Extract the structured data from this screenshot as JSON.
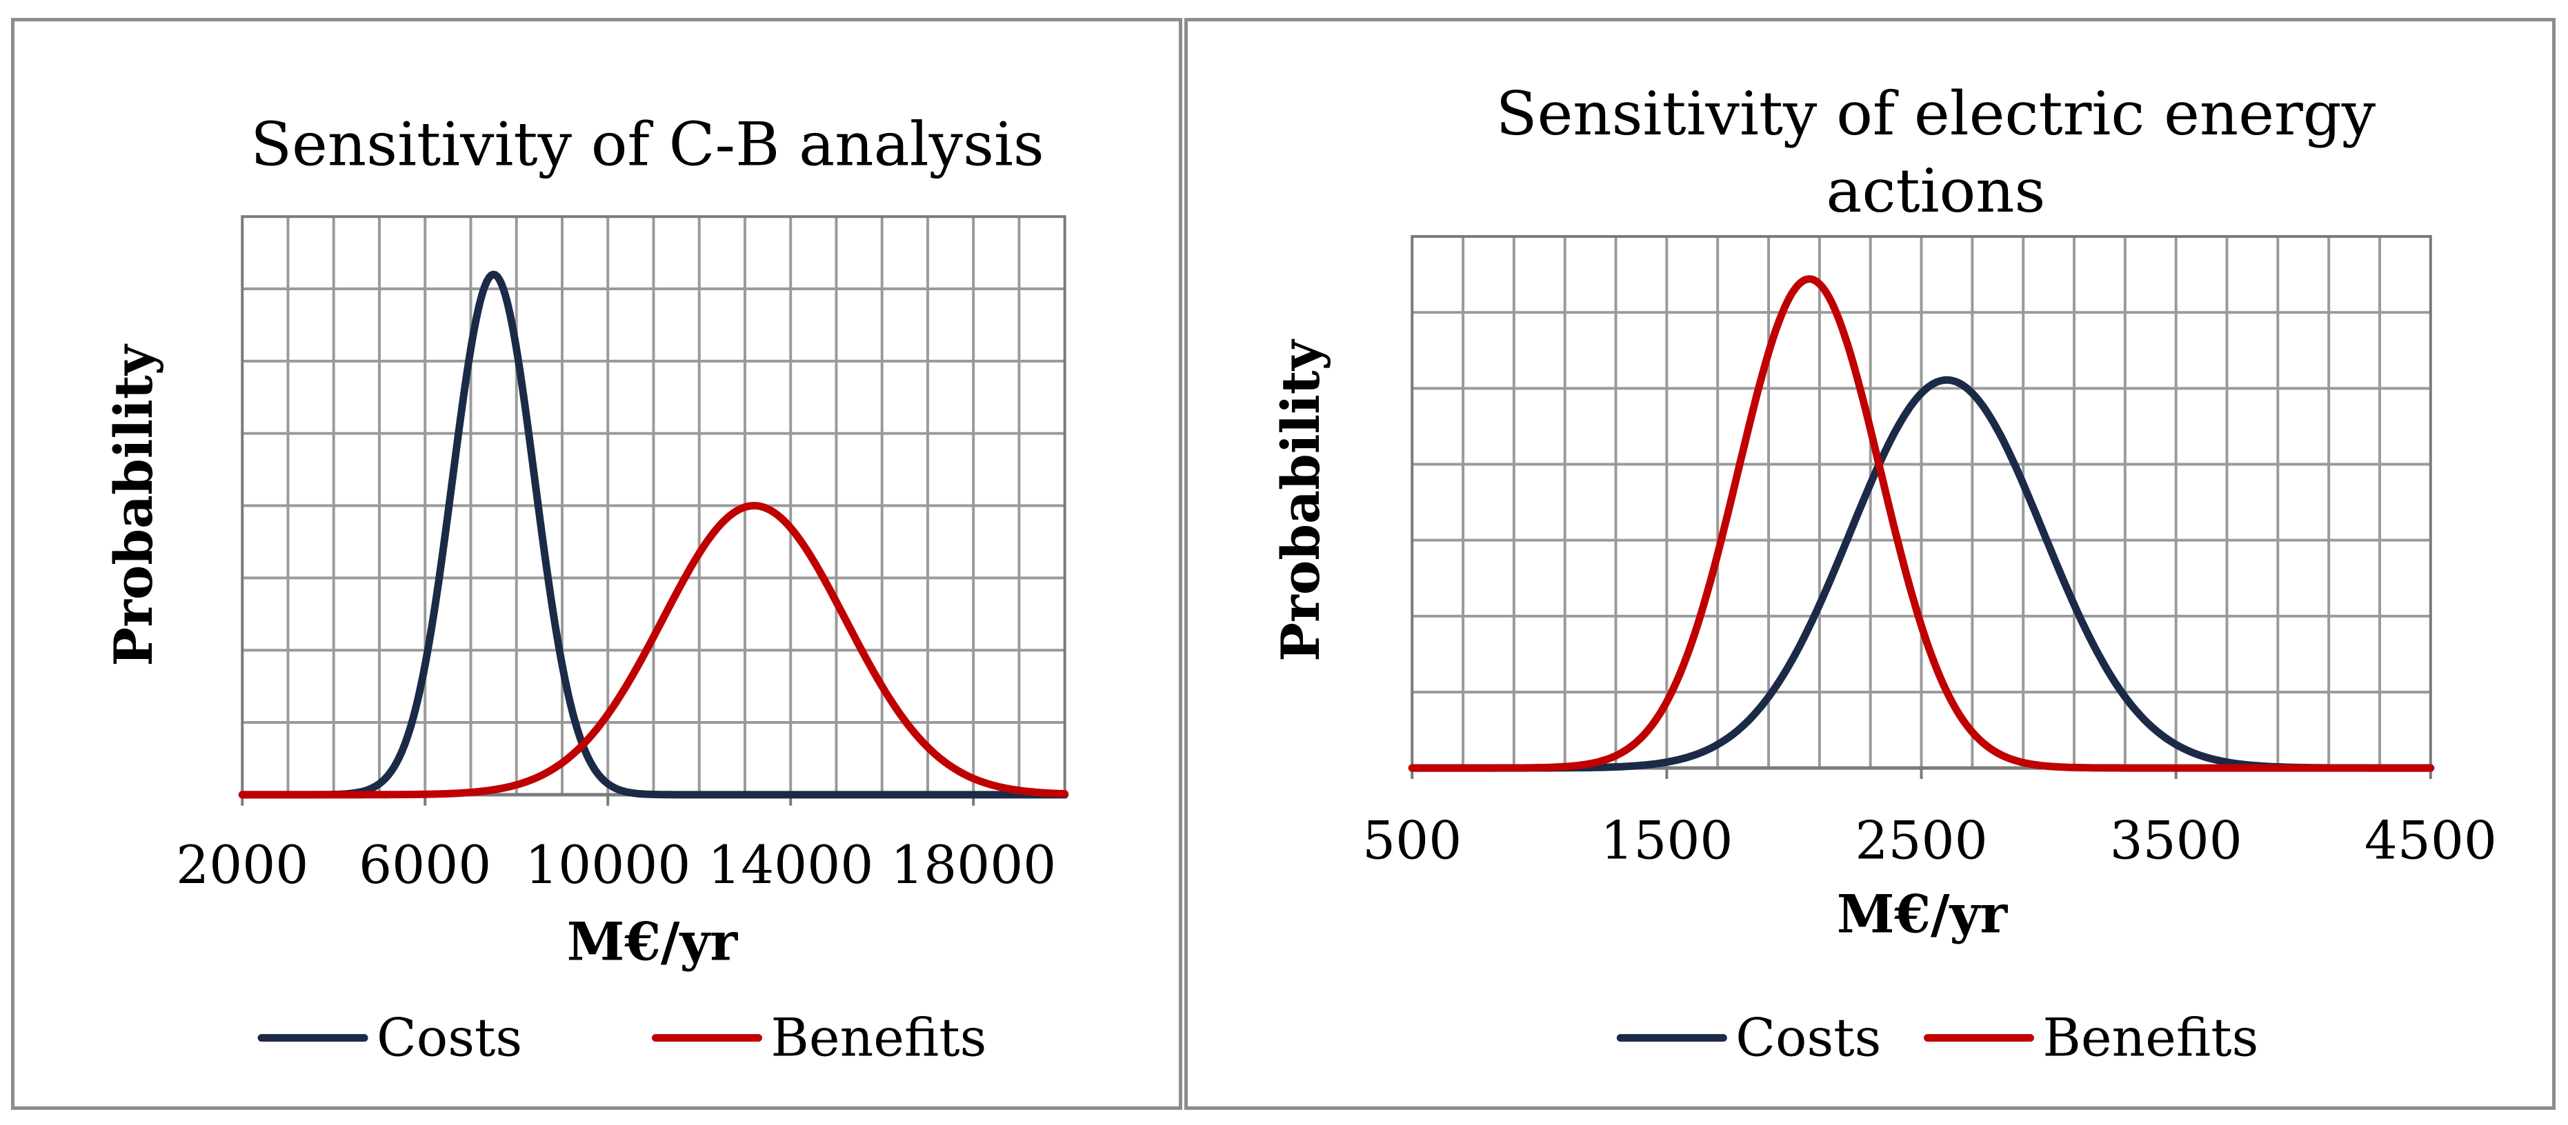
{
  "chart_data": [
    {
      "type": "line",
      "title": [
        "Sensitivity of  C-B analysis"
      ],
      "xlabel": "M€/yr",
      "ylabel": "Probability",
      "xlim": [
        2000,
        20000
      ],
      "x_tick_values": [
        2000,
        6000,
        10000,
        14000,
        18000
      ],
      "x_tick_labels": [
        "2000",
        "6000",
        "10000",
        "14000",
        "18000"
      ],
      "x_grid_step": 1000,
      "y_grid_lines": 8,
      "grid": true,
      "legend_position": "bottom",
      "series": [
        {
          "name": "Costs",
          "color": "#1b2a47",
          "distribution": "normal",
          "mean": 7500,
          "std": 900,
          "peak": 0.9
        },
        {
          "name": "Benefits",
          "color": "#c00000",
          "distribution": "normal",
          "mean": 13200,
          "std": 2000,
          "peak": 0.5
        }
      ]
    },
    {
      "type": "line",
      "title": [
        "Sensitivity of  electric energy",
        "actions"
      ],
      "xlabel": "M€/yr",
      "ylabel": "Probability",
      "xlim": [
        500,
        4500
      ],
      "x_tick_values": [
        500,
        1500,
        2500,
        3500,
        4500
      ],
      "x_tick_labels": [
        "500",
        "1500",
        "2500",
        "3500",
        "4500"
      ],
      "x_grid_step": 200,
      "y_grid_lines": 7,
      "grid": true,
      "legend_position": "bottom",
      "series": [
        {
          "name": "Costs",
          "color": "#1b2a47",
          "distribution": "normal",
          "mean": 2600,
          "std": 380,
          "peak": 0.73
        },
        {
          "name": "Benefits",
          "color": "#c00000",
          "distribution": "normal",
          "mean": 2060,
          "std": 280,
          "peak": 0.92
        }
      ]
    }
  ]
}
